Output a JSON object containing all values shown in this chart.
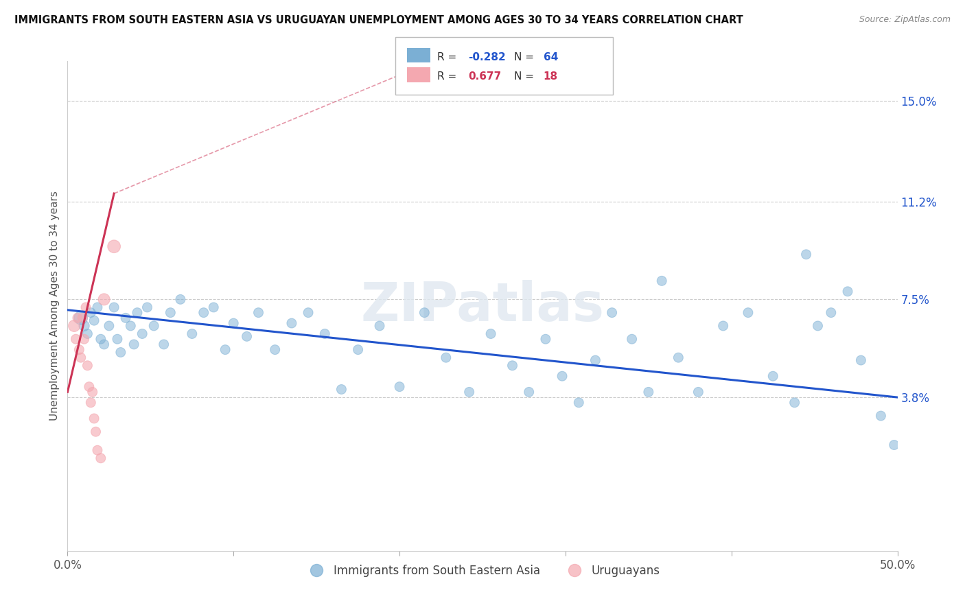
{
  "title": "IMMIGRANTS FROM SOUTH EASTERN ASIA VS URUGUAYAN UNEMPLOYMENT AMONG AGES 30 TO 34 YEARS CORRELATION CHART",
  "source": "Source: ZipAtlas.com",
  "ylabel": "Unemployment Among Ages 30 to 34 years",
  "xlim": [
    0.0,
    0.5
  ],
  "ylim": [
    -0.02,
    0.165
  ],
  "yticks_right": [
    0.038,
    0.075,
    0.112,
    0.15
  ],
  "yticklabels_right": [
    "3.8%",
    "7.5%",
    "11.2%",
    "15.0%"
  ],
  "legend_blue_r": "-0.282",
  "legend_blue_n": "64",
  "legend_pink_r": "0.677",
  "legend_pink_n": "18",
  "blue_color": "#7BAFD4",
  "pink_color": "#F4A8B0",
  "trendline_blue_color": "#2255CC",
  "trendline_pink_color": "#CC3355",
  "watermark": "ZIPatlas",
  "background_color": "#FFFFFF",
  "grid_color": "#CCCCCC",
  "blue_points": [
    [
      0.008,
      0.068
    ],
    [
      0.01,
      0.065
    ],
    [
      0.012,
      0.062
    ],
    [
      0.014,
      0.07
    ],
    [
      0.016,
      0.067
    ],
    [
      0.018,
      0.072
    ],
    [
      0.02,
      0.06
    ],
    [
      0.022,
      0.058
    ],
    [
      0.025,
      0.065
    ],
    [
      0.028,
      0.072
    ],
    [
      0.03,
      0.06
    ],
    [
      0.032,
      0.055
    ],
    [
      0.035,
      0.068
    ],
    [
      0.038,
      0.065
    ],
    [
      0.04,
      0.058
    ],
    [
      0.042,
      0.07
    ],
    [
      0.045,
      0.062
    ],
    [
      0.048,
      0.072
    ],
    [
      0.052,
      0.065
    ],
    [
      0.058,
      0.058
    ],
    [
      0.062,
      0.07
    ],
    [
      0.068,
      0.075
    ],
    [
      0.075,
      0.062
    ],
    [
      0.082,
      0.07
    ],
    [
      0.088,
      0.072
    ],
    [
      0.095,
      0.056
    ],
    [
      0.1,
      0.066
    ],
    [
      0.108,
      0.061
    ],
    [
      0.115,
      0.07
    ],
    [
      0.125,
      0.056
    ],
    [
      0.135,
      0.066
    ],
    [
      0.145,
      0.07
    ],
    [
      0.155,
      0.062
    ],
    [
      0.165,
      0.041
    ],
    [
      0.175,
      0.056
    ],
    [
      0.188,
      0.065
    ],
    [
      0.2,
      0.042
    ],
    [
      0.215,
      0.07
    ],
    [
      0.228,
      0.053
    ],
    [
      0.242,
      0.04
    ],
    [
      0.255,
      0.062
    ],
    [
      0.268,
      0.05
    ],
    [
      0.278,
      0.04
    ],
    [
      0.288,
      0.06
    ],
    [
      0.298,
      0.046
    ],
    [
      0.308,
      0.036
    ],
    [
      0.318,
      0.052
    ],
    [
      0.328,
      0.07
    ],
    [
      0.34,
      0.06
    ],
    [
      0.35,
      0.04
    ],
    [
      0.358,
      0.082
    ],
    [
      0.368,
      0.053
    ],
    [
      0.38,
      0.04
    ],
    [
      0.395,
      0.065
    ],
    [
      0.41,
      0.07
    ],
    [
      0.425,
      0.046
    ],
    [
      0.438,
      0.036
    ],
    [
      0.445,
      0.092
    ],
    [
      0.452,
      0.065
    ],
    [
      0.46,
      0.07
    ],
    [
      0.47,
      0.078
    ],
    [
      0.478,
      0.052
    ],
    [
      0.49,
      0.031
    ],
    [
      0.498,
      0.02
    ]
  ],
  "pink_points": [
    [
      0.004,
      0.065
    ],
    [
      0.005,
      0.06
    ],
    [
      0.006,
      0.068
    ],
    [
      0.007,
      0.056
    ],
    [
      0.008,
      0.053
    ],
    [
      0.009,
      0.068
    ],
    [
      0.01,
      0.06
    ],
    [
      0.011,
      0.072
    ],
    [
      0.012,
      0.05
    ],
    [
      0.013,
      0.042
    ],
    [
      0.014,
      0.036
    ],
    [
      0.015,
      0.04
    ],
    [
      0.016,
      0.03
    ],
    [
      0.017,
      0.025
    ],
    [
      0.022,
      0.075
    ],
    [
      0.028,
      0.095
    ],
    [
      0.018,
      0.018
    ],
    [
      0.02,
      0.015
    ]
  ],
  "blue_trendline": [
    [
      0.0,
      0.071
    ],
    [
      0.5,
      0.038
    ]
  ],
  "pink_trendline_solid": [
    [
      0.0,
      0.04
    ],
    [
      0.028,
      0.115
    ]
  ],
  "pink_trendline_dashed": [
    [
      0.028,
      0.115
    ],
    [
      0.22,
      0.165
    ]
  ],
  "blue_sizes": [
    200,
    120,
    100,
    100,
    100,
    100,
    100,
    100,
    100,
    100,
    100,
    100,
    100,
    100,
    100,
    100,
    100,
    100,
    100,
    100,
    100,
    100,
    100,
    100,
    100,
    100,
    100,
    100,
    100,
    100,
    100,
    100,
    100,
    100,
    100,
    100,
    100,
    100,
    100,
    100,
    100,
    100,
    100,
    100,
    100,
    100,
    100,
    100,
    100,
    100,
    100,
    100,
    100,
    100,
    100,
    100,
    100,
    100,
    100,
    100,
    100,
    100,
    100,
    100
  ],
  "pink_sizes": [
    150,
    100,
    100,
    100,
    100,
    100,
    100,
    100,
    100,
    100,
    100,
    100,
    100,
    100,
    150,
    180,
    100,
    100
  ]
}
